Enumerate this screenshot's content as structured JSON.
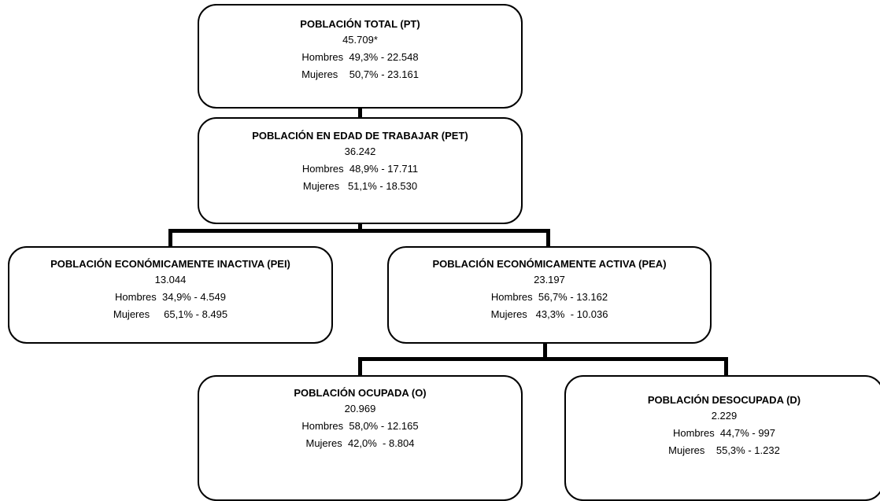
{
  "boxes": {
    "pt": {
      "title": "POBLACIÓN TOTAL (PT)",
      "total": "45.709*",
      "hombres": "Hombres  49,3% - 22.548",
      "mujeres": "Mujeres    50,7% - 23.161"
    },
    "pet": {
      "title": "POBLACIÓN EN EDAD DE TRABAJAR (PET)",
      "total": "36.242",
      "hombres": "Hombres  48,9% - 17.711",
      "mujeres": "Mujeres   51,1% - 18.530"
    },
    "pei": {
      "title": "POBLACIÓN ECONÓMICAMENTE INACTIVA (PEI)",
      "total": "13.044",
      "hombres": "Hombres  34,9% - 4.549",
      "mujeres": "Mujeres     65,1% - 8.495"
    },
    "pea": {
      "title": "POBLACIÓN ECONÓMICAMENTE ACTIVA (PEA)",
      "total": "23.197",
      "hombres": "Hombres  56,7% - 13.162",
      "mujeres": "Mujeres   43,3%  - 10.036"
    },
    "o": {
      "title": "POBLACIÓN OCUPADA (O)",
      "total": "20.969",
      "hombres": "Hombres  58,0% - 12.165",
      "mujeres": "Mujeres  42,0%  - 8.804"
    },
    "d": {
      "title": "POBLACIÓN DESOCUPADA (D)",
      "total": "2.229",
      "hombres": "Hombres  44,7% - 997",
      "mujeres": "Mujeres    55,3% - 1.232"
    }
  }
}
